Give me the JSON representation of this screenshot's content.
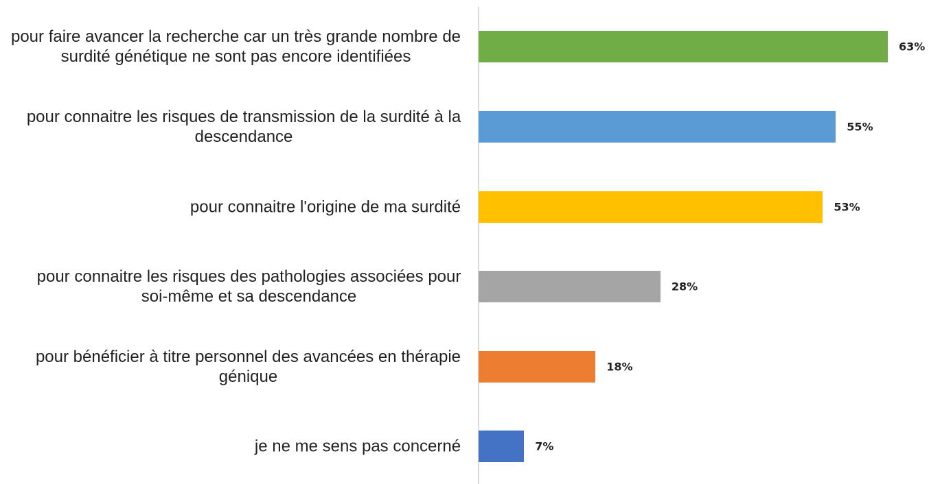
{
  "chart_data": {
    "type": "bar",
    "orientation": "horizontal",
    "categories": [
      "pour faire avancer la recherche car un très grande nombre de surdité génétique ne sont pas encore identifiées",
      "pour connaitre les risques de transmission de la surdité à la descendance",
      "pour connaitre l'origine de ma surdité",
      "pour connaitre les risques des pathologies associées pour soi-même et sa descendance",
      "pour bénéficier à titre personnel des avancées en thérapie génique",
      "je ne me sens pas concerné"
    ],
    "values": [
      63,
      55,
      53,
      28,
      18,
      7
    ],
    "value_labels": [
      "63%",
      "55%",
      "53%",
      "28%",
      "18%",
      "7%"
    ],
    "colors": [
      "#70ad47",
      "#5b9bd5",
      "#ffc000",
      "#a5a5a5",
      "#ed7d31",
      "#4472c4"
    ]
  }
}
